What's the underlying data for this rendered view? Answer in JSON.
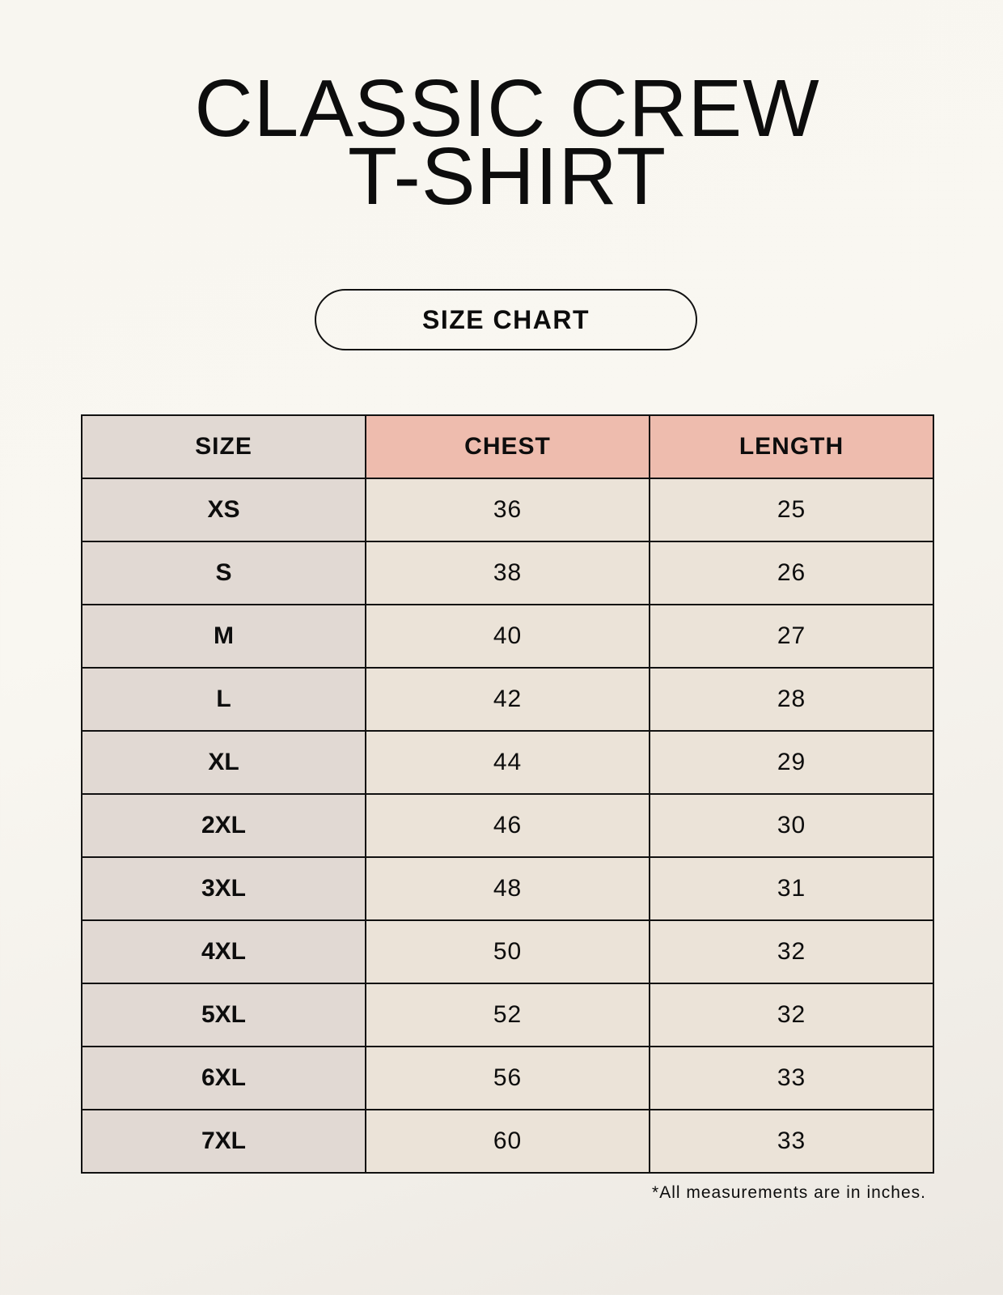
{
  "title": {
    "line1": "CLASSIC CREW",
    "line2": "T-SHIRT"
  },
  "badge": "SIZE CHART",
  "table": {
    "headers": [
      "SIZE",
      "CHEST",
      "LENGTH"
    ],
    "rows": [
      [
        "XS",
        "36",
        "25"
      ],
      [
        "S",
        "38",
        "26"
      ],
      [
        "M",
        "40",
        "27"
      ],
      [
        "L",
        "42",
        "28"
      ],
      [
        "XL",
        "44",
        "29"
      ],
      [
        "2XL",
        "46",
        "30"
      ],
      [
        "3XL",
        "48",
        "31"
      ],
      [
        "4XL",
        "50",
        "32"
      ],
      [
        "5XL",
        "52",
        "32"
      ],
      [
        "6XL",
        "56",
        "33"
      ],
      [
        "7XL",
        "60",
        "33"
      ]
    ]
  },
  "footnote": "*All measurements are in inches.",
  "colors": {
    "size_column": "#e1d9d3",
    "header_accent": "#eebcae",
    "value_cells": "#ebe3d8"
  }
}
